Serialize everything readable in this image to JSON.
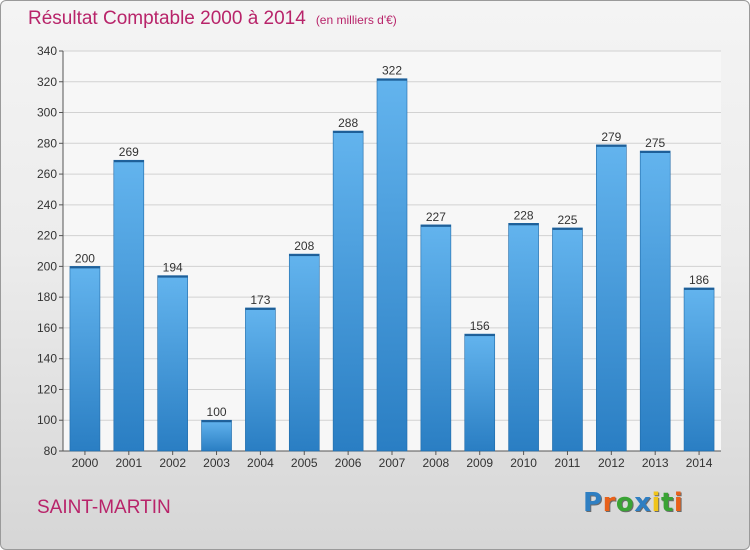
{
  "header": {
    "title": "Résultat Comptable 2000 à 2014",
    "subtitle": "(en milliers d'€)"
  },
  "footer": {
    "place": "SAINT-MARTIN",
    "logo_text": "Proxiti",
    "logo_colors": [
      "#2f7fc2",
      "#e8611a",
      "#3aa335",
      "#2f7fc2",
      "#f0c419",
      "#3aa335",
      "#e8611a"
    ]
  },
  "colors": {
    "title": "#b8246a",
    "bar_light": "#63b4ee",
    "bar_dark": "#2a7ec3",
    "grid": "#d2d2d2",
    "axis_text": "#333333"
  },
  "chart_data": {
    "type": "bar",
    "categories": [
      "2000",
      "2001",
      "2002",
      "2003",
      "2004",
      "2005",
      "2006",
      "2007",
      "2008",
      "2009",
      "2010",
      "2011",
      "2012",
      "2013",
      "2014"
    ],
    "values": [
      200,
      269,
      194,
      100,
      173,
      208,
      288,
      322,
      227,
      156,
      228,
      225,
      279,
      275,
      186
    ],
    "title": "Résultat Comptable 2000 à 2014",
    "subtitle": "(en milliers d'€)",
    "xlabel": "",
    "ylabel": "",
    "ylim": [
      80,
      340
    ],
    "yticks": [
      80,
      100,
      120,
      140,
      160,
      180,
      200,
      220,
      240,
      260,
      280,
      300,
      320,
      340
    ],
    "grid": true,
    "data_labels": true
  }
}
